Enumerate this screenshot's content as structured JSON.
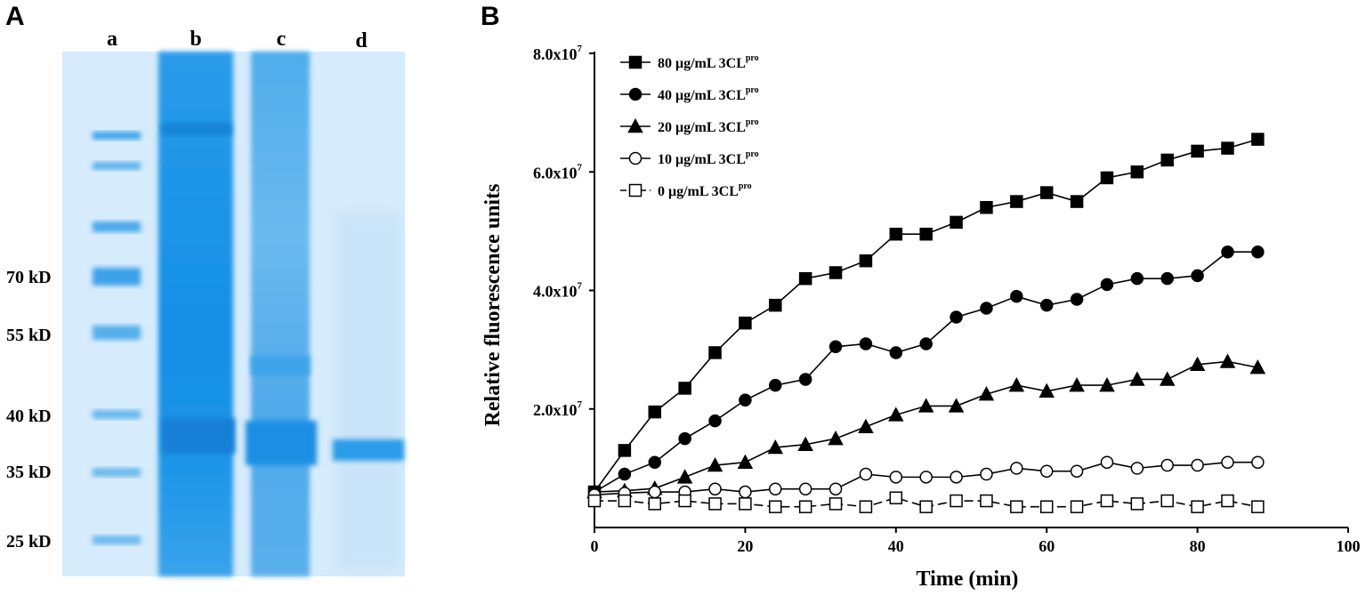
{
  "panels": {
    "a_label": "A",
    "b_label": "B"
  },
  "gel": {
    "lanes": [
      "a",
      "b",
      "c",
      "d"
    ],
    "markers": [
      "70 kD",
      "55 kD",
      "40 kD",
      "35 kD",
      "25 kD"
    ],
    "colors": {
      "background": "#d6ebfb",
      "stain": "#1e96e8"
    }
  },
  "chart_data": {
    "type": "line",
    "title": "",
    "xlabel": "Time (min)",
    "ylabel": "Relative fluorescence units",
    "xlim": [
      0,
      100
    ],
    "ylim": [
      0,
      80000000
    ],
    "xticks": [
      0,
      20,
      40,
      60,
      80,
      100
    ],
    "xtick_labels": [
      "0",
      "20",
      "40",
      "60",
      "80",
      "100"
    ],
    "yticks": [
      20000000,
      40000000,
      60000000,
      80000000
    ],
    "ytick_labels": [
      "2.0x10",
      "4.0x10",
      "6.0x10",
      "8.0x10"
    ],
    "ytick_exponent": "7",
    "legend_position": "top-left",
    "x": [
      0,
      4,
      8,
      12,
      16,
      20,
      24,
      28,
      32,
      36,
      40,
      44,
      48,
      52,
      56,
      60,
      64,
      68,
      72,
      76,
      80,
      84,
      88
    ],
    "series": [
      {
        "name": "80 μg/mL 3CL",
        "sup": "pro",
        "marker": "filled-square",
        "dash": "solid",
        "values": [
          6000000,
          13000000,
          19500000,
          23500000,
          29500000,
          34500000,
          37500000,
          42000000,
          43000000,
          45000000,
          49500000,
          49500000,
          51500000,
          54000000,
          55000000,
          56500000,
          55000000,
          59000000,
          60000000,
          62000000,
          63500000,
          64000000,
          65500000
        ]
      },
      {
        "name": "40 μg/mL 3CL",
        "sup": "pro",
        "marker": "filled-circle",
        "dash": "solid",
        "values": [
          6000000,
          9000000,
          11000000,
          15000000,
          18000000,
          21500000,
          24000000,
          25000000,
          30500000,
          31000000,
          29500000,
          31000000,
          35500000,
          37000000,
          39000000,
          37500000,
          38500000,
          41000000,
          42000000,
          42000000,
          42500000,
          46500000,
          46500000
        ]
      },
      {
        "name": "20 μg/mL 3CL",
        "sup": "pro",
        "marker": "filled-triangle",
        "dash": "solid",
        "values": [
          6000000,
          6200000,
          6600000,
          8500000,
          10500000,
          11000000,
          13500000,
          14000000,
          15000000,
          17000000,
          19000000,
          20500000,
          20500000,
          22500000,
          24000000,
          23000000,
          24000000,
          24000000,
          25000000,
          25000000,
          27500000,
          28000000,
          27000000
        ]
      },
      {
        "name": "10 μg/mL 3CL",
        "sup": "pro",
        "marker": "open-circle",
        "dash": "solid",
        "values": [
          5500000,
          5800000,
          6000000,
          6000000,
          6500000,
          6000000,
          6500000,
          6500000,
          6500000,
          9000000,
          8500000,
          8500000,
          8500000,
          9000000,
          10000000,
          9500000,
          9500000,
          11000000,
          10000000,
          10500000,
          10500000,
          11000000,
          11000000
        ]
      },
      {
        "name": "0 μg/mL 3CL",
        "sup": "pro",
        "marker": "open-square",
        "dash": "dashed",
        "values": [
          4500000,
          4500000,
          4000000,
          4500000,
          4000000,
          4000000,
          3500000,
          3500000,
          4000000,
          3500000,
          5000000,
          3500000,
          4500000,
          4500000,
          3500000,
          3500000,
          3500000,
          4500000,
          4000000,
          4500000,
          3500000,
          4500000,
          3500000
        ]
      }
    ]
  }
}
